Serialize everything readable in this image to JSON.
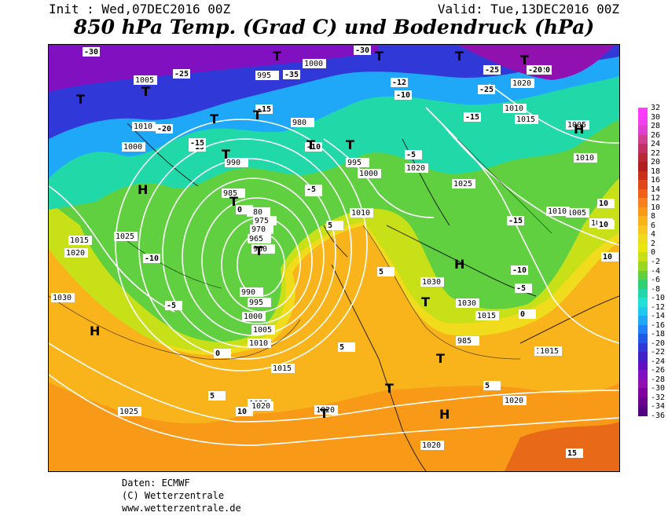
{
  "header": {
    "init": "Init : Wed,07DEC2016 00Z",
    "valid": "Valid: Tue,13DEC2016 00Z",
    "title": "850 hPa Temp. (Grad C) und Bodendruck (hPa)"
  },
  "footer": {
    "line1": "Daten: ECMWF",
    "line2": "(C) Wetterzentrale",
    "line3": "www.wetterzentrale.de"
  },
  "legend": {
    "labels": [
      "32",
      "30",
      "28",
      "26",
      "24",
      "22",
      "20",
      "18",
      "16",
      "14",
      "12",
      "10",
      "8",
      "6",
      "4",
      "2",
      "0",
      "-2",
      "-4",
      "-6",
      "-8",
      "-10",
      "-12",
      "-14",
      "-16",
      "-18",
      "-20",
      "-22",
      "-24",
      "-26",
      "-28",
      "-30",
      "-32",
      "-34",
      "-36"
    ],
    "colors": [
      "#ff3cff",
      "#f040f0",
      "#e040d0",
      "#d04090",
      "#c03060",
      "#b82838",
      "#b02020",
      "#c83018",
      "#e04818",
      "#f06018",
      "#f88020",
      "#f89a18",
      "#f8b41a",
      "#f8c820",
      "#f0dc1c",
      "#e8e810",
      "#c8e018",
      "#98d820",
      "#60d040",
      "#30d070",
      "#20d8a8",
      "#20e0d8",
      "#20c8f0",
      "#20a8f8",
      "#2080f8",
      "#2058e8",
      "#3038d8",
      "#4020c8",
      "#6010c0",
      "#8010c0",
      "#9010b0",
      "#8000a0",
      "#6a0090",
      "#500080"
    ]
  },
  "map": {
    "pressure_labels": [
      "1020",
      "1015",
      "1010",
      "1005",
      "1000",
      "995",
      "990",
      "985",
      "980",
      "975",
      "970",
      "965",
      "960",
      "1025",
      "1030",
      "1020",
      "1015",
      "1010",
      "1005",
      "1000",
      "1025",
      "1020",
      "1015",
      "1010",
      "1005",
      "1030",
      "1030",
      "1020",
      "1020",
      "1025",
      "1015",
      "1020",
      "1020",
      "1010",
      "1005",
      "1000",
      "995",
      "990",
      "985",
      "980",
      "1015",
      "1020",
      "1010",
      "1015",
      "1005",
      "1010",
      "995",
      "1000"
    ],
    "temperature_labels": [
      "-30",
      "-25",
      "-20",
      "-15",
      "-10",
      "-5",
      "0",
      "5",
      "-35",
      "-30",
      "-25",
      "-20",
      "-15",
      "-12",
      "-10",
      "-5",
      "-15",
      "-10",
      "-5",
      "5",
      "5",
      "5",
      "0",
      "10",
      "10",
      "10",
      "10",
      "5",
      "15",
      "-15",
      "-10",
      "-5",
      "0",
      "-5",
      "-15",
      "-20",
      "-25"
    ],
    "pressure_systems": [
      "H",
      "H",
      "H",
      "H",
      "H",
      "T",
      "T",
      "T",
      "T",
      "T",
      "T",
      "T",
      "T",
      "T",
      "T",
      "T",
      "T",
      "T",
      "T",
      "T",
      "T",
      "T"
    ]
  }
}
